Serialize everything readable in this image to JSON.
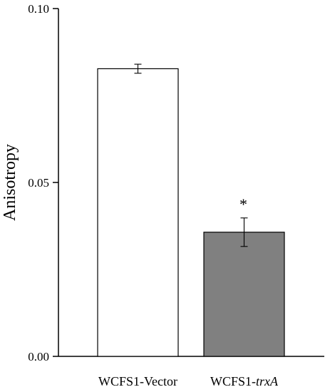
{
  "chart_data": {
    "type": "bar",
    "title": "",
    "xlabel": "",
    "ylabel": "Anisotropy",
    "ylim": [
      0,
      0.1
    ],
    "yticks": [
      "0.00",
      "0.05",
      "0.10"
    ],
    "categories": [
      {
        "prefix": "WCFS1-",
        "name": "Vector",
        "italic": false
      },
      {
        "prefix": "WCFS1-",
        "name": "trxA",
        "italic": true
      }
    ],
    "values": [
      0.0827,
      0.0357
    ],
    "errors": [
      0.0013,
      0.0041
    ],
    "bar_colors": [
      "#ffffff",
      "#808080"
    ],
    "annotations": [
      "",
      "*"
    ],
    "grid": false,
    "legend": "none"
  }
}
